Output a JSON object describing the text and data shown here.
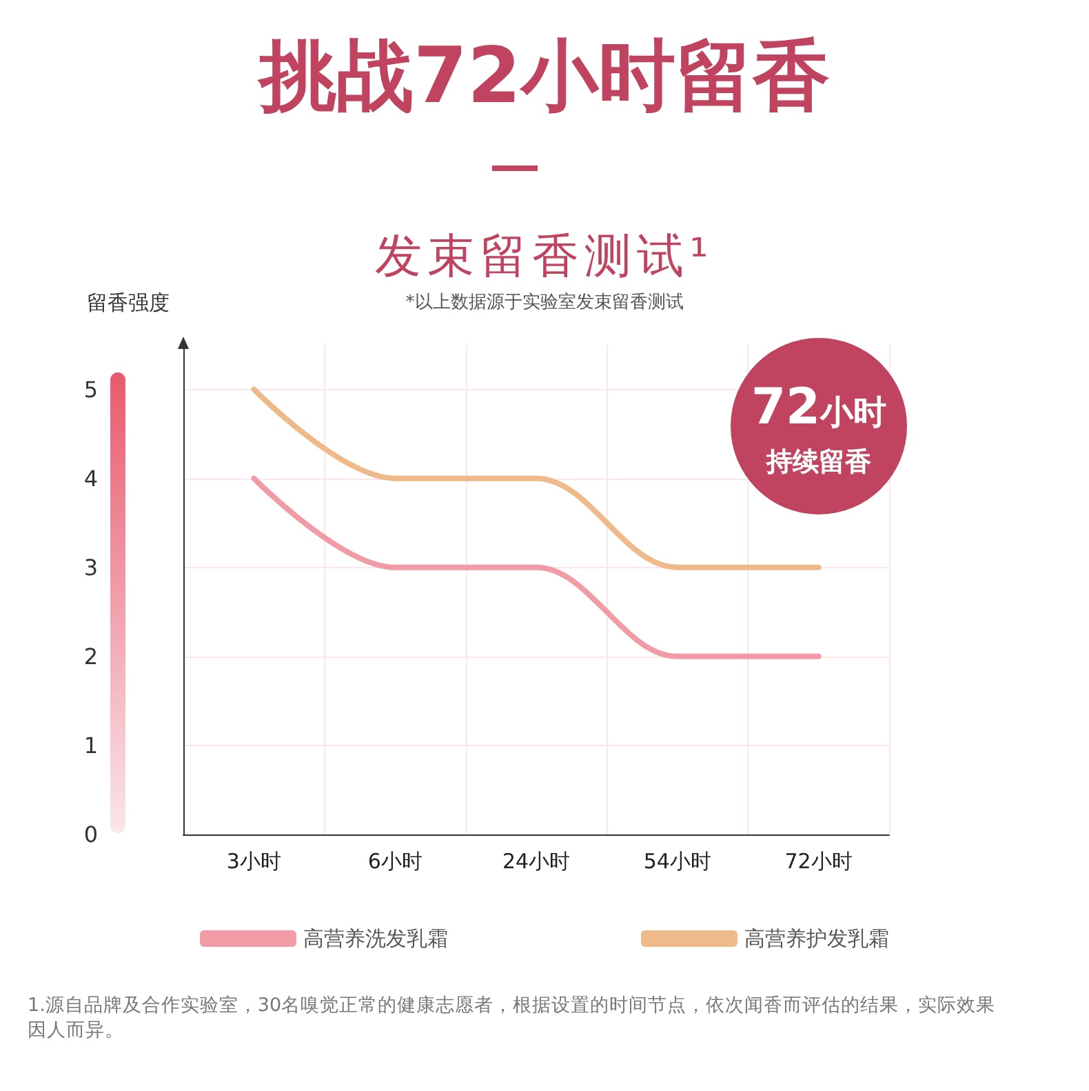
{
  "chart_data": {
    "type": "line",
    "title": "挑战72小时留香",
    "subtitle": "发束留香测试¹",
    "ylabel": "留香强度",
    "categories": [
      "3小时",
      "6小时",
      "24小时",
      "54小时",
      "72小时"
    ],
    "series": [
      {
        "name": "高营养洗发乳霜",
        "color": "#f29ba6",
        "values": [
          4,
          3,
          3,
          2,
          2
        ]
      },
      {
        "name": "高营养护发乳霜",
        "color": "#f0b98a",
        "values": [
          5,
          4,
          4,
          3,
          3
        ]
      }
    ],
    "ylim": [
      0,
      5.5
    ],
    "yticks": [
      0,
      1,
      2,
      3,
      4,
      5
    ],
    "grid": true,
    "legend": "bottom",
    "marker": "none",
    "line_style": "solid",
    "annotations": [
      "*以上数据源于实验室发束留香测试",
      "72小时",
      "持续留香",
      "1.源自品牌及合作实验室，30名嗅觉正常的健康志愿者，根据设置的时间节点，依次闻香而评估的结果，实际效果因人而异。"
    ]
  }
}
